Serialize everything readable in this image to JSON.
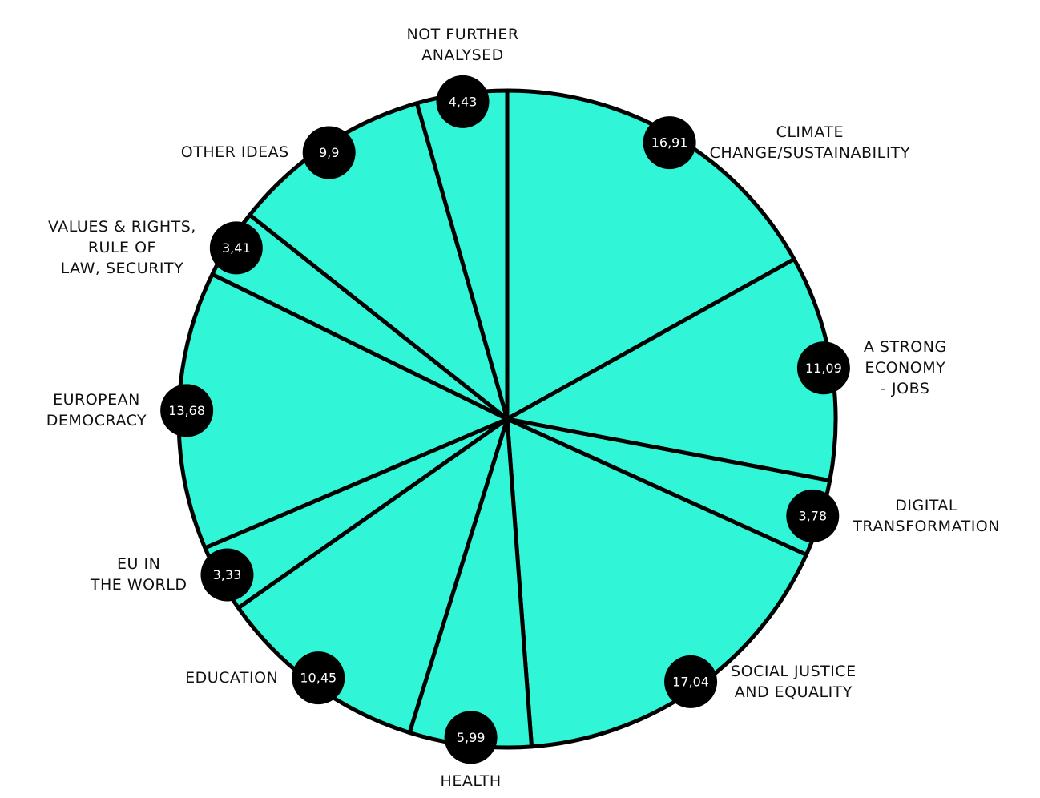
{
  "chart_data": {
    "type": "pie",
    "categories": [
      "CLIMATE\nCHANGE/SUSTAINABILITY",
      "A STRONG\nECONOMY\n- JOBS",
      "DIGITAL\nTRANSFORMATION",
      "SOCIAL JUSTICE\nAND EQUALITY",
      "HEALTH",
      "EDUCATION",
      "EU IN\nTHE WORLD",
      "EUROPEAN\nDEMOCRACY",
      "VALUES & RIGHTS,\nRULE OF\nLAW, SECURITY",
      "OTHER IDEAS",
      "NOT FURTHER\nANALYSED"
    ],
    "values": [
      16.91,
      11.09,
      3.78,
      17.04,
      5.99,
      10.45,
      3.33,
      13.68,
      3.41,
      9.9,
      4.43
    ],
    "value_labels": [
      "16,91",
      "11,09",
      "3,78",
      "17,04",
      "5,99",
      "10,45",
      "3,33",
      "13,68",
      "3,41",
      "9,9",
      "4,43"
    ],
    "color": "#30f5d6"
  }
}
